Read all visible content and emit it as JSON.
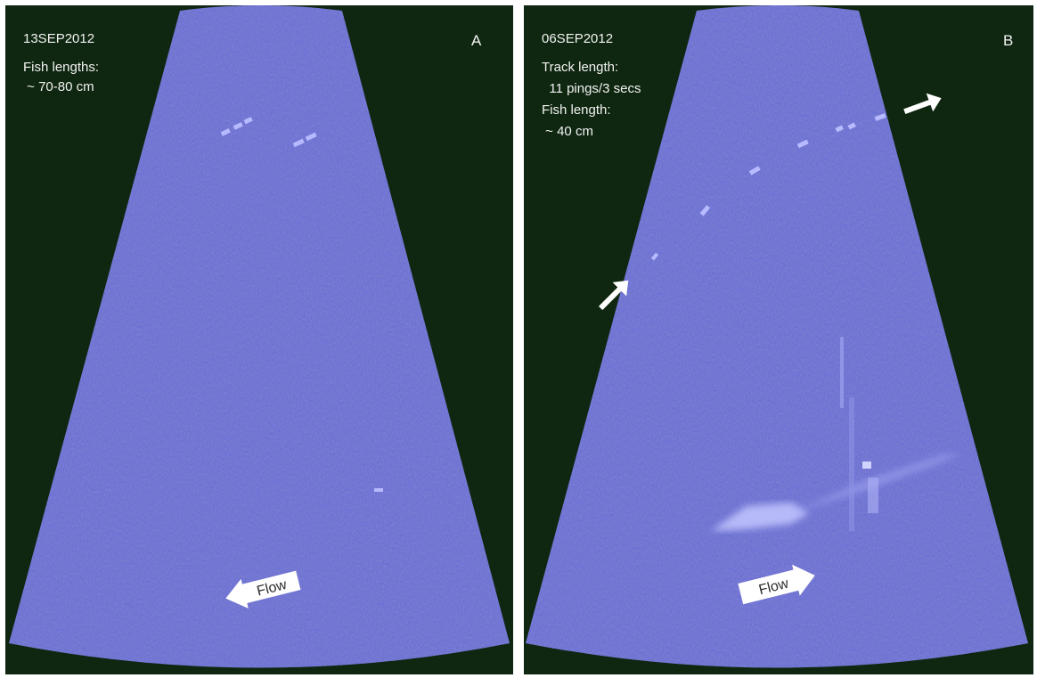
{
  "panel_a": {
    "date": "13SEP2012",
    "info_line1": "Fish lengths:",
    "info_line2": " ~ 70-80 cm",
    "letter": "A",
    "flow_label": "Flow",
    "flow_direction": "left"
  },
  "panel_b": {
    "date": "06SEP2012",
    "info_line1": "Track length:",
    "info_line2": "  11 pings/3 secs",
    "info_line3": "Fish length:",
    "info_line4": " ~ 40 cm",
    "letter": "B",
    "flow_label": "Flow",
    "flow_direction": "right"
  },
  "colors": {
    "background": "#0f2710",
    "sonar_fill": "#6a6ed4",
    "text": "#f2f2f2",
    "arrow": "#ffffff"
  }
}
